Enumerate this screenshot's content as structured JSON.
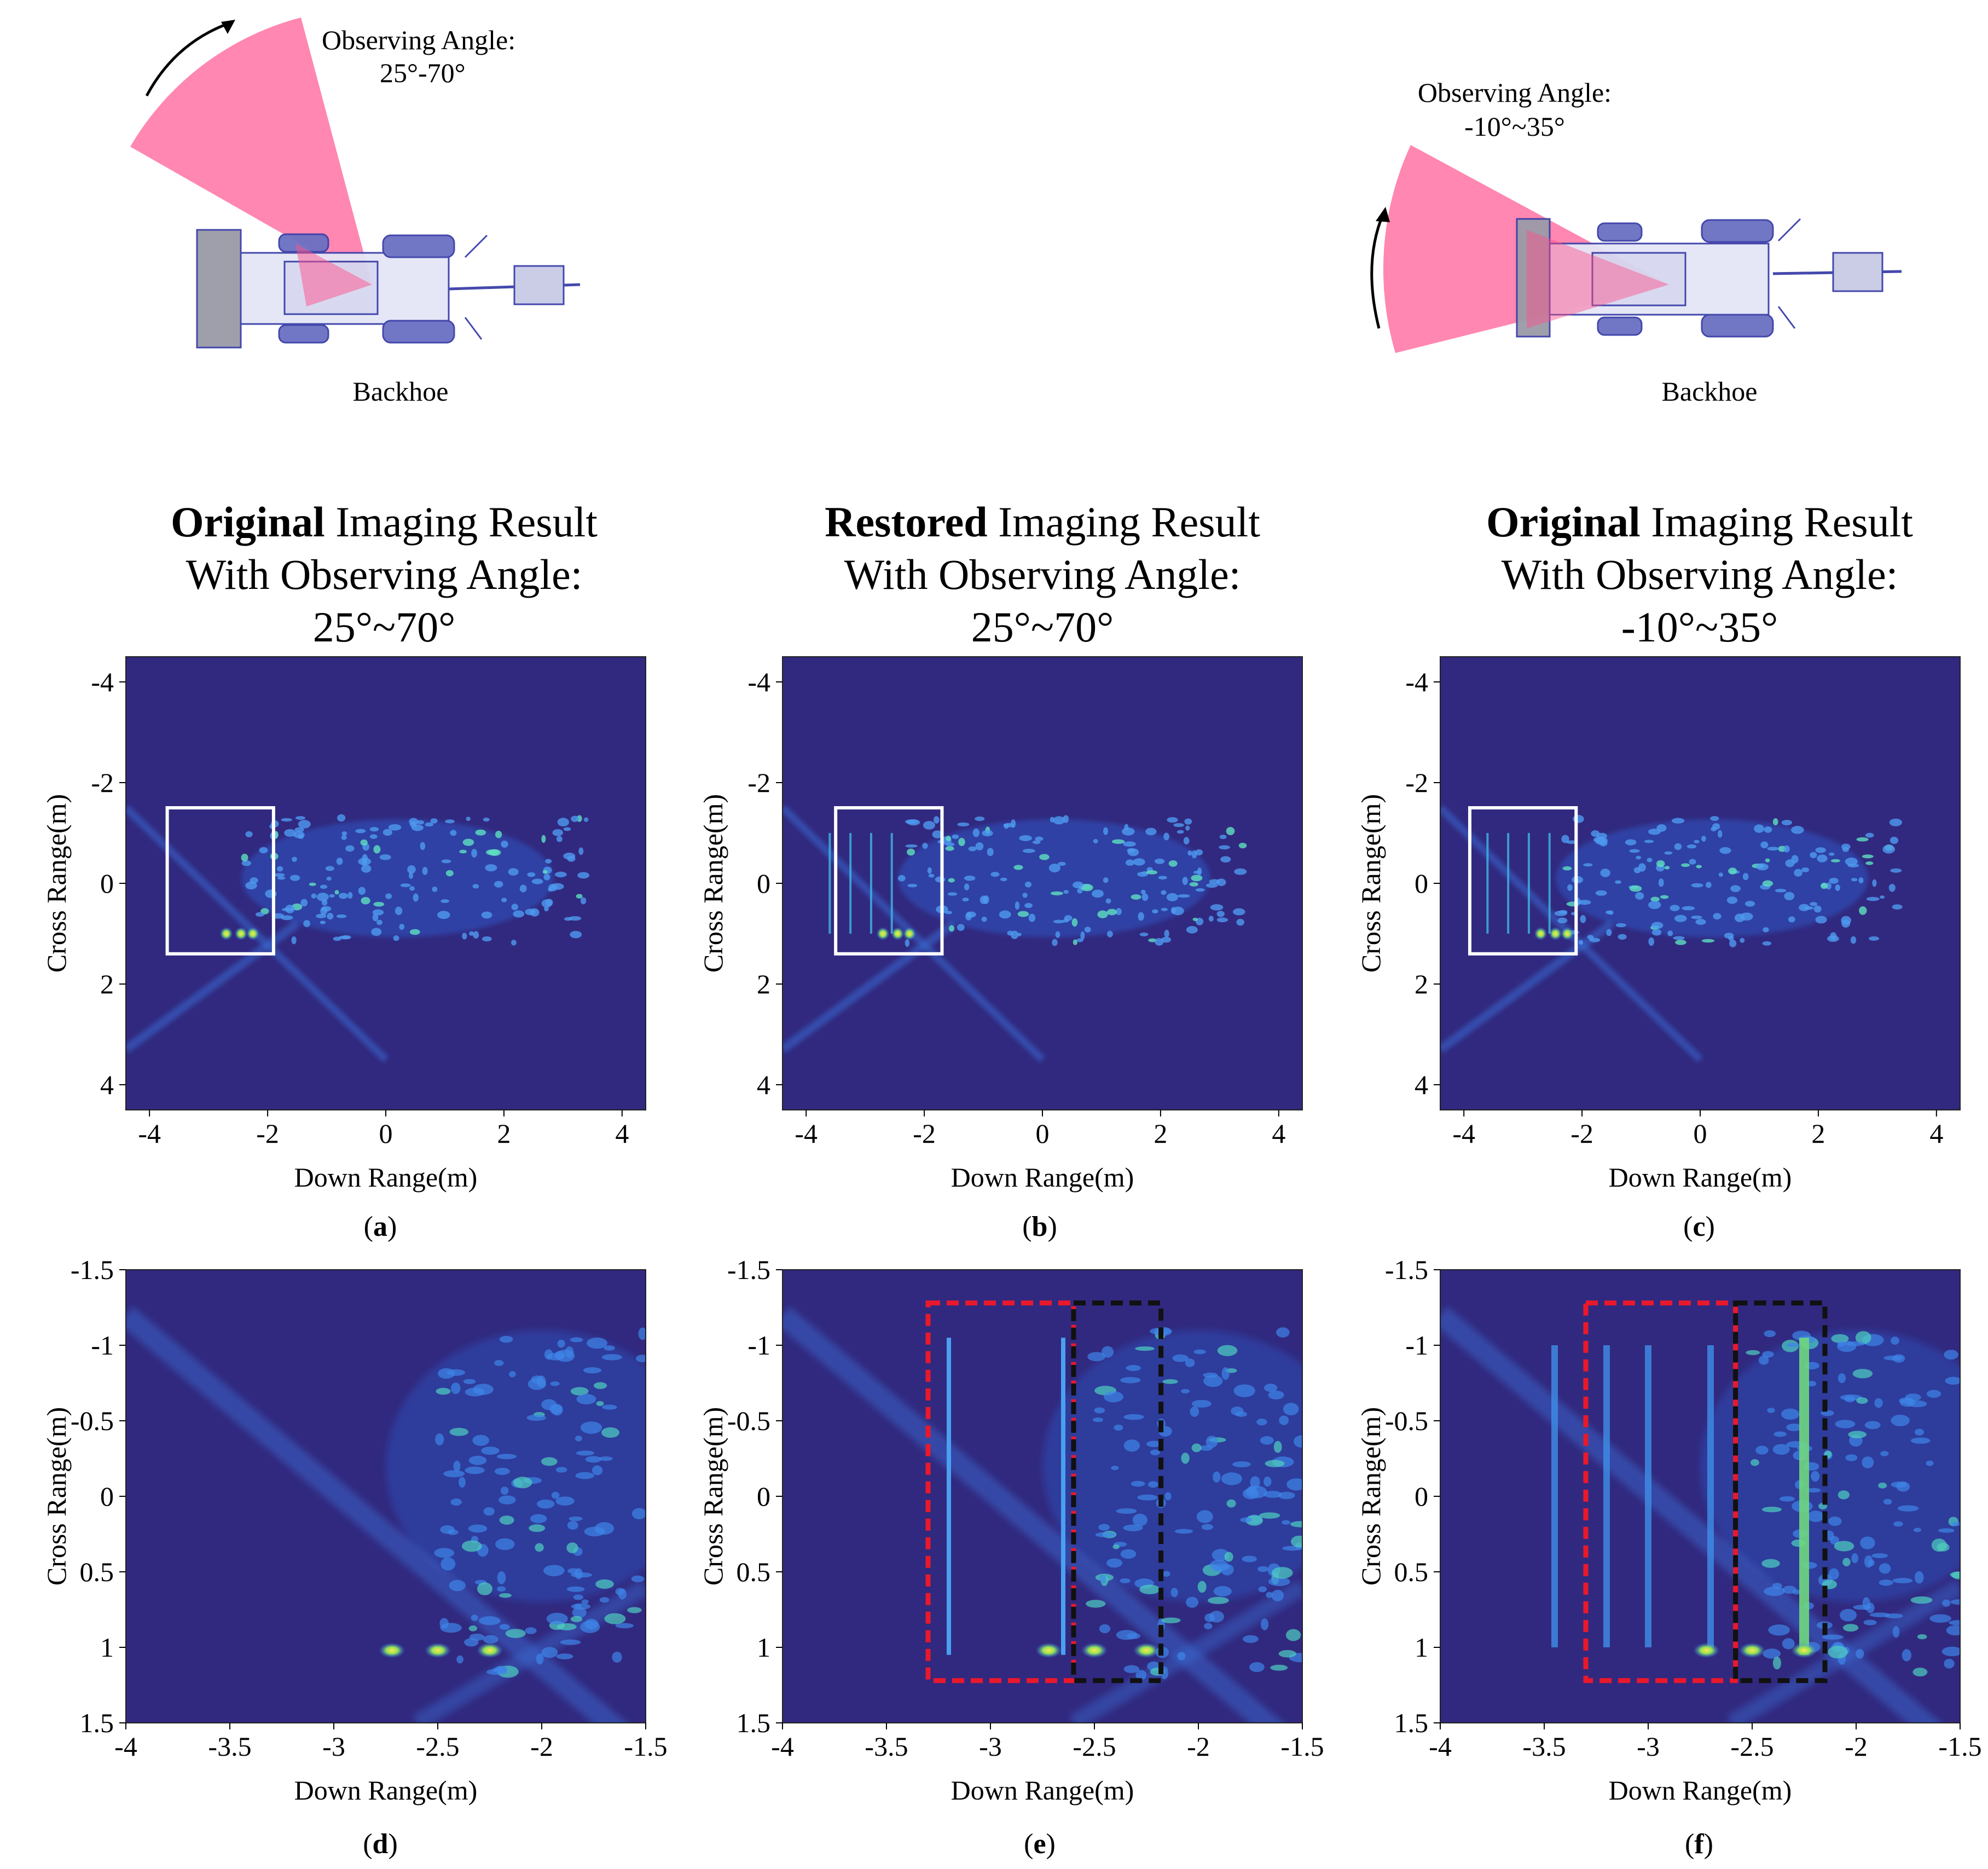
{
  "top_diagrams": [
    {
      "id": "left",
      "angle_title": "Observing Angle:",
      "angle_range": "25°-70°",
      "vehicle": "Backhoe"
    },
    {
      "id": "right",
      "angle_title": "Observing Angle:",
      "angle_range": "-10°~35°",
      "vehicle": "Backhoe"
    }
  ],
  "column_titles": [
    {
      "bold": "Original",
      "rest": " Imaging Result",
      "line2": "With Observing Angle:",
      "line3": "25°~70°"
    },
    {
      "bold": "Restored",
      "rest": " Imaging Result",
      "line2": "With Observing Angle:",
      "line3": "25°~70°"
    },
    {
      "bold": "Original",
      "rest": " Imaging Result",
      "line2": "With Observing Angle:",
      "line3": "-10°~35°"
    }
  ],
  "axes": {
    "xlabel": "Down Range(m)",
    "ylabel": "Cross Range(m)",
    "full_x_ticks": [
      "-4",
      "-2",
      "0",
      "2",
      "4"
    ],
    "full_y_ticks": [
      "-4",
      "-2",
      "0",
      "2",
      "4"
    ],
    "zoom_x_ticks": [
      "-4",
      "-3.5",
      "-3",
      "-2.5",
      "-2",
      "-1.5"
    ],
    "zoom_y_ticks": [
      "-1.5",
      "-1",
      "-0.5",
      "0",
      "0.5",
      "1",
      "1.5"
    ]
  },
  "panel_labels": [
    "a",
    "b",
    "c",
    "d",
    "e",
    "f"
  ],
  "colors": {
    "background": "#31297f",
    "white_box": "#ffffff",
    "red_box": "#e8192c",
    "black_box": "#111111",
    "sector": "#ff7aa8"
  },
  "chart_data": [
    {
      "type": "heatmap",
      "panel": "a",
      "title": "Original Imaging Result With Observing Angle: 25°~70°",
      "xlabel": "Down Range(m)",
      "ylabel": "Cross Range(m)",
      "xlim": [
        -4.4,
        4.4
      ],
      "ylim": [
        -4.5,
        4.5
      ],
      "highlight_box": {
        "x": [
          -3.7,
          -1.9
        ],
        "y": [
          -1.5,
          1.4
        ]
      }
    },
    {
      "type": "heatmap",
      "panel": "b",
      "title": "Restored Imaging Result With Observing Angle: 25°~70°",
      "xlabel": "Down Range(m)",
      "ylabel": "Cross Range(m)",
      "xlim": [
        -4.4,
        4.4
      ],
      "ylim": [
        -4.5,
        4.5
      ],
      "highlight_box": {
        "x": [
          -3.5,
          -1.7
        ],
        "y": [
          -1.5,
          1.4
        ]
      }
    },
    {
      "type": "heatmap",
      "panel": "c",
      "title": "Original Imaging Result With Observing Angle: -10°~35°",
      "xlabel": "Down Range(m)",
      "ylabel": "Cross Range(m)",
      "xlim": [
        -4.4,
        4.4
      ],
      "ylim": [
        -4.5,
        4.5
      ],
      "highlight_box": {
        "x": [
          -3.9,
          -2.1
        ],
        "y": [
          -1.5,
          1.4
        ]
      }
    },
    {
      "type": "heatmap",
      "panel": "d",
      "xlabel": "Down Range(m)",
      "ylabel": "Cross Range(m)",
      "xlim": [
        -4,
        -1.5
      ],
      "ylim": [
        -1.5,
        1.5
      ]
    },
    {
      "type": "heatmap",
      "panel": "e",
      "xlabel": "Down Range(m)",
      "ylabel": "Cross Range(m)",
      "xlim": [
        -4,
        -1.5
      ],
      "ylim": [
        -1.5,
        1.5
      ],
      "red_box": {
        "x": [
          -3.3,
          -2.6
        ],
        "y": [
          -1.28,
          1.22
        ]
      },
      "black_box": {
        "x": [
          -2.6,
          -2.18
        ],
        "y": [
          -1.28,
          1.22
        ]
      }
    },
    {
      "type": "heatmap",
      "panel": "f",
      "xlabel": "Down Range(m)",
      "ylabel": "Cross Range(m)",
      "xlim": [
        -4,
        -1.5
      ],
      "ylim": [
        -1.5,
        1.5
      ],
      "red_box": {
        "x": [
          -3.3,
          -2.58
        ],
        "y": [
          -1.28,
          1.22
        ]
      },
      "black_box": {
        "x": [
          -2.58,
          -2.15
        ],
        "y": [
          -1.28,
          1.22
        ]
      }
    }
  ]
}
